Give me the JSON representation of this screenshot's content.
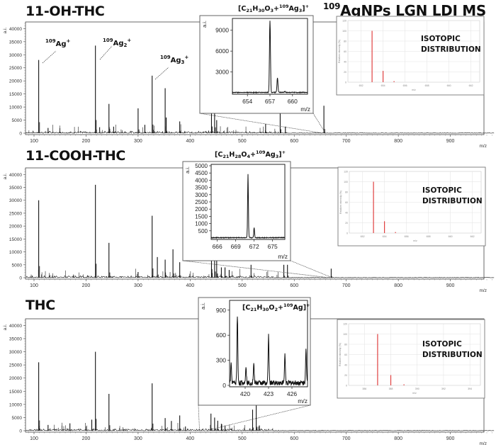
{
  "figure": {
    "main_title_sup": "109",
    "main_title": "AgNPs LGN LDI MS",
    "x_unit": "m/z",
    "y_unit": "a.i."
  },
  "panels": [
    {
      "title": "11-OH-THC",
      "inset_formula": {
        "pre": "[C",
        "c": "21",
        "h_pre": "H",
        "h": "30",
        "o_pre": "O",
        "o": "3",
        "plus": "+",
        "iso": "109",
        "ag": "Ag",
        "n": "3",
        "close": "]",
        "charge": "+"
      },
      "annotations": [
        {
          "iso": "109",
          "label": "Ag",
          "sub": "",
          "charge": "+"
        },
        {
          "iso": "109",
          "label": "Ag",
          "sub": "2",
          "charge": "+"
        },
        {
          "iso": "109",
          "label": "Ag",
          "sub": "3",
          "charge": "+"
        }
      ],
      "isotopic_label_line1": "ISOTOPIC",
      "isotopic_label_line2": "DISTRIBUTION"
    },
    {
      "title": "11-COOH-THC",
      "inset_formula": {
        "pre": "[C",
        "c": "21",
        "h_pre": "H",
        "h": "28",
        "o_pre": "O",
        "o": "4",
        "plus": "+",
        "iso": "109",
        "ag": "Ag",
        "n": "3",
        "close": "]",
        "charge": "+"
      },
      "isotopic_label_line1": "ISOTOPIC",
      "isotopic_label_line2": "DISTRIBUTION"
    },
    {
      "title": "THC",
      "inset_formula": {
        "pre": "[C",
        "c": "21",
        "h_pre": "H",
        "h": "30",
        "o_pre": "O",
        "o": "2",
        "plus": "+",
        "iso": "109",
        "ag": "Ag",
        "n": "",
        "close": "]",
        "charge": "+"
      },
      "isotopic_label_line1": "ISOTOPIC",
      "isotopic_label_line2": "DISTRIBUTION"
    }
  ],
  "chart_data": [
    {
      "type": "line",
      "title": "11-OH-THC",
      "xlabel": "m/z",
      "ylabel": "a.i.",
      "xlim": [
        80,
        990
      ],
      "ylim": [
        0,
        42000
      ],
      "xticks": [
        100,
        200,
        300,
        400,
        500,
        600,
        700,
        800,
        900
      ],
      "yticks": [
        0,
        5000,
        10000,
        15000,
        20000,
        25000,
        30000,
        35000,
        40000
      ],
      "peaks": {
        "x": [
          109,
          127,
          218,
          244,
          253,
          300,
          313,
          327,
          352,
          354,
          380,
          441,
          447,
          451,
          545,
          573,
          583,
          657
        ],
        "y": [
          28000,
          2000,
          33500,
          11200,
          2500,
          9500,
          3200,
          22000,
          17200,
          6000,
          4500,
          17000,
          15000,
          5000,
          3500,
          10000,
          2500,
          10500
        ]
      },
      "annotations": [
        "109Ag+ (m/z 109)",
        "109Ag2+ (m/z 218)",
        "109Ag3+ (m/z 327)"
      ]
    },
    {
      "type": "line",
      "title": "[C21H30O3+109Ag3]+ (inset)",
      "xlabel": "m/z",
      "ylabel": "a.i.",
      "xlim": [
        652,
        662
      ],
      "ylim": [
        0,
        10500
      ],
      "xticks": [
        654,
        657,
        660
      ],
      "yticks": [
        3000,
        6000,
        9000
      ],
      "peaks": {
        "x": [
          657,
          658,
          659
        ],
        "y": [
          10300,
          2100,
          150
        ]
      }
    },
    {
      "type": "bar",
      "title": "Isotopic distribution (11-OH-THC)",
      "xlabel": "m/z",
      "ylabel": "Relative intensity (%)",
      "xticks": [
        652,
        654,
        656,
        658,
        660,
        662
      ],
      "yticks": [
        0,
        20,
        40,
        60,
        80,
        100,
        120
      ],
      "ylim": [
        0,
        120
      ],
      "x": [
        653,
        654,
        655
      ],
      "values": [
        100,
        22,
        2
      ]
    },
    {
      "type": "line",
      "title": "11-COOH-THC",
      "xlabel": "m/z",
      "ylabel": "a.i.",
      "xlim": [
        80,
        990
      ],
      "ylim": [
        0,
        42000
      ],
      "xticks": [
        100,
        200,
        300,
        400,
        500,
        600,
        700,
        800,
        900
      ],
      "yticks": [
        0,
        5000,
        10000,
        15000,
        20000,
        25000,
        30000,
        35000,
        40000
      ],
      "peaks": {
        "x": [
          109,
          218,
          244,
          300,
          327,
          337,
          352,
          367,
          380,
          441,
          447,
          451,
          460,
          467,
          475,
          517,
          580,
          587,
          671
        ],
        "y": [
          30000,
          36000,
          13500,
          2200,
          24000,
          8000,
          7000,
          11000,
          6000,
          12000,
          16000,
          11000,
          4000,
          4000,
          3000,
          5000,
          5000,
          5000,
          3500
        ]
      }
    },
    {
      "type": "line",
      "title": "[C21H28O4+109Ag3]+ (inset)",
      "xlabel": "m/z",
      "ylabel": "a.i.",
      "xlim": [
        665,
        677
      ],
      "ylim": [
        0,
        5000
      ],
      "xticks": [
        666,
        669,
        672,
        675
      ],
      "yticks": [
        500,
        1000,
        1500,
        2000,
        2500,
        3000,
        3500,
        4000,
        4500,
        5000
      ],
      "peaks": {
        "x": [
          671,
          672
        ],
        "y": [
          4400,
          700
        ]
      }
    },
    {
      "type": "bar",
      "title": "Isotopic distribution (11-COOH-THC)",
      "xlabel": "m/z",
      "ylabel": "Relative intensity (%)",
      "xticks": [
        652,
        654,
        656,
        658,
        660,
        662
      ],
      "yticks": [
        0,
        20,
        40,
        60,
        80,
        100,
        120
      ],
      "ylim": [
        0,
        120
      ],
      "x": [
        653,
        654,
        655
      ],
      "values": [
        100,
        23,
        2
      ]
    },
    {
      "type": "line",
      "title": "THC",
      "xlabel": "m/z",
      "ylabel": "a.i.",
      "xlim": [
        80,
        990
      ],
      "ylim": [
        0,
        42000
      ],
      "xticks": [
        100,
        200,
        300,
        400,
        500,
        600,
        700,
        800,
        900
      ],
      "yticks": [
        0,
        5000,
        10000,
        15000,
        20000,
        25000,
        30000,
        35000,
        40000
      ],
      "peaks": {
        "x": [
          109,
          127,
          169,
          211,
          218,
          244,
          327,
          352,
          364,
          380,
          391,
          440,
          447,
          453,
          460,
          467,
          520,
          527,
          533
        ],
        "y": [
          26000,
          2200,
          2800,
          4200,
          30000,
          14000,
          18000,
          4800,
          3700,
          5800,
          1600,
          6500,
          5000,
          3800,
          2600,
          2000,
          8000,
          10000,
          2000
        ]
      }
    },
    {
      "type": "line",
      "title": "[C21H30O2+109Ag]+ (inset)",
      "xlabel": "m/z",
      "ylabel": "a.i.",
      "xlim": [
        418,
        428
      ],
      "ylim": [
        0,
        1000
      ],
      "xticks": [
        420,
        423,
        426
      ],
      "yticks": [
        0,
        300,
        600,
        900
      ],
      "peaks": {
        "x": [
          418.2,
          419,
          420.1,
          421.1,
          423,
          425.1,
          427.8
        ],
        "y": [
          220,
          810,
          210,
          230,
          560,
          340,
          400
        ]
      }
    },
    {
      "type": "bar",
      "title": "Isotopic distribution (THC)",
      "xlabel": "m/z",
      "ylabel": "Relative intensity (%)",
      "xticks": [
        386,
        388,
        390,
        392,
        394
      ],
      "yticks": [
        0,
        20,
        40,
        60,
        80,
        100,
        120
      ],
      "ylim": [
        0,
        120
      ],
      "x": [
        387,
        388,
        389
      ],
      "values": [
        100,
        20,
        2
      ]
    }
  ]
}
